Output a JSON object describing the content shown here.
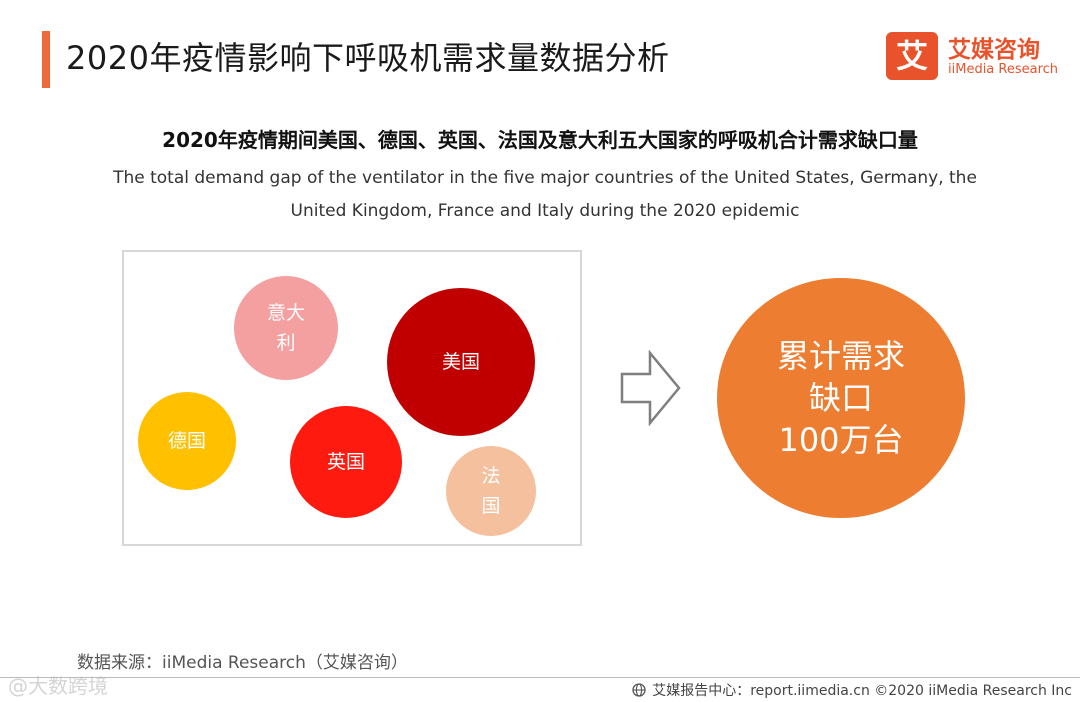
{
  "header": {
    "title": "2020年疫情影响下呼吸机需求量数据分析",
    "accent_color": "#f0693a"
  },
  "logo": {
    "badge": "艾",
    "name_cn": "艾媒咨询",
    "name_en": "iiMedia Research",
    "color": "#e8532b"
  },
  "subtitle": {
    "cn": "2020年疫情期间美国、德国、英国、法国及意大利五大国家的呼吸机合计需求缺口量",
    "en": "The total demand gap of the ventilator in the five major countries of the United States, Germany, the United Kingdom, France and Italy during the 2020 epidemic"
  },
  "chart_data": {
    "type": "bubble",
    "bubbles": [
      {
        "label_lines": [
          "意大",
          "利"
        ],
        "color": "#f4a0a0"
      },
      {
        "label_lines": [
          "美国"
        ],
        "color": "#c00000"
      },
      {
        "label_lines": [
          "德国"
        ],
        "color": "#ffc000"
      },
      {
        "label_lines": [
          "英国"
        ],
        "color": "#ff1a10"
      },
      {
        "label_lines": [
          "法",
          "国"
        ],
        "color": "#f4c09e"
      }
    ],
    "total": {
      "lines": [
        "累计需求",
        "缺口",
        "100万台"
      ],
      "value": 1000000,
      "unit": "台",
      "color": "#ed7d31"
    }
  },
  "arrow_icon": "right-outline-arrow-icon",
  "footer": {
    "source": "数据来源：iiMedia Research（艾媒咨询）",
    "report_center": "艾媒报告中心：report.iimedia.cn  ©2020  iiMedia Research  Inc",
    "watermark": "@大数跨境"
  }
}
